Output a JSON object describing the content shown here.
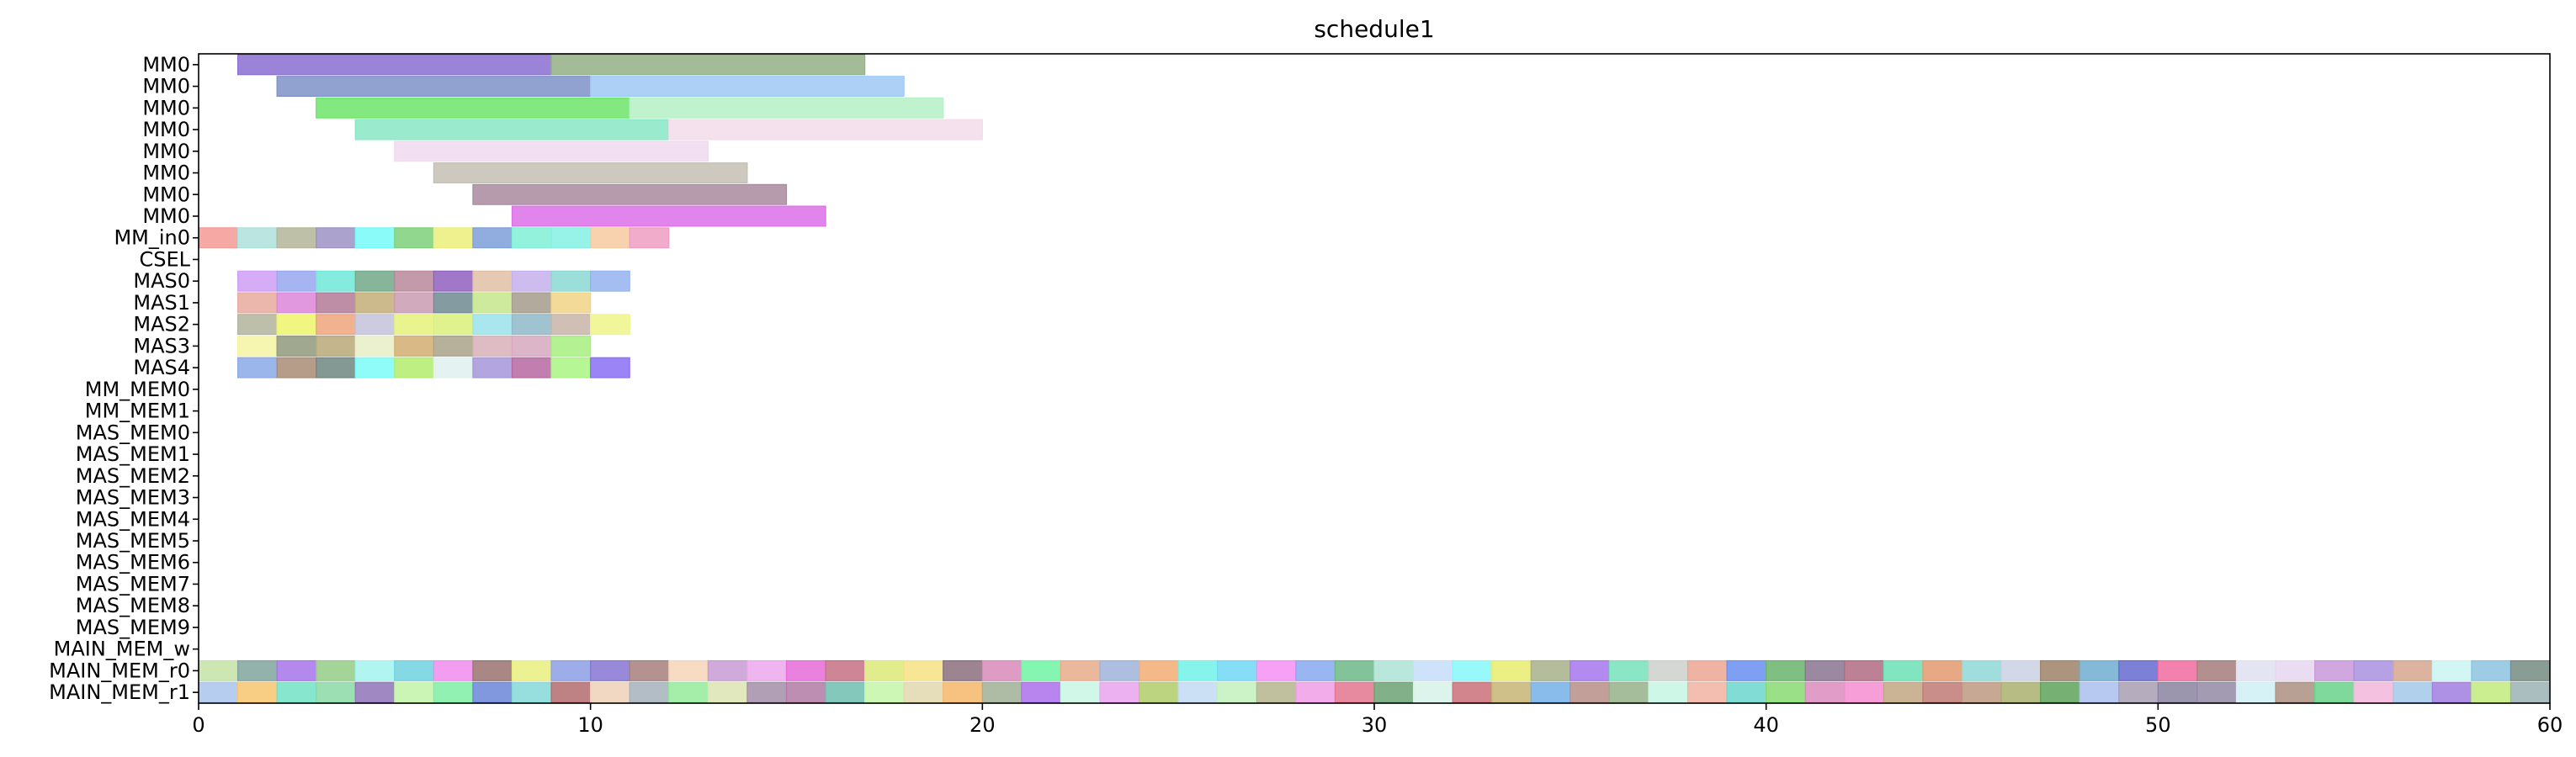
{
  "chart_data": {
    "type": "gantt",
    "title": "schedule1",
    "xlim": [
      0,
      60
    ],
    "x_ticks": [
      0,
      10,
      20,
      30,
      40,
      50,
      60
    ],
    "rows": [
      "MM0",
      "MM0",
      "MM0",
      "MM0",
      "MM0",
      "MM0",
      "MM0",
      "MM0",
      "MM_in0",
      "CSEL",
      "MAS0",
      "MAS1",
      "MAS2",
      "MAS3",
      "MAS4",
      "MM_MEM0",
      "MM_MEM1",
      "MAS_MEM0",
      "MAS_MEM1",
      "MAS_MEM2",
      "MAS_MEM3",
      "MAS_MEM4",
      "MAS_MEM5",
      "MAS_MEM6",
      "MAS_MEM7",
      "MAS_MEM8",
      "MAS_MEM9",
      "MAIN_MEM_w",
      "MAIN_MEM_r0",
      "MAIN_MEM_r1"
    ],
    "bars": [
      {
        "row": 0,
        "start": 1,
        "end": 9,
        "color": "#8a6fd0"
      },
      {
        "row": 0,
        "start": 9,
        "end": 17,
        "color": "#93b085"
      },
      {
        "row": 1,
        "start": 2,
        "end": 10,
        "color": "#7e90c8"
      },
      {
        "row": 1,
        "start": 10,
        "end": 18,
        "color": "#9fc8f5"
      },
      {
        "row": 2,
        "start": 3,
        "end": 11,
        "color": "#6ee46a"
      },
      {
        "row": 2,
        "start": 11,
        "end": 19,
        "color": "#b6f0c6"
      },
      {
        "row": 3,
        "start": 4,
        "end": 12,
        "color": "#88e6c6"
      },
      {
        "row": 3,
        "start": 12,
        "end": 20,
        "color": "#f3dbea"
      },
      {
        "row": 4,
        "start": 5,
        "end": 13,
        "color": "#f0d9ee"
      },
      {
        "row": 5,
        "start": 6,
        "end": 14,
        "color": "#c5c0b3"
      },
      {
        "row": 6,
        "start": 7,
        "end": 15,
        "color": "#a8899e"
      },
      {
        "row": 7,
        "start": 8,
        "end": 16,
        "color": "#dc6ee8"
      },
      {
        "row": 8,
        "start": 0,
        "end": 1,
        "color": "#f59a94"
      },
      {
        "row": 8,
        "start": 1,
        "end": 2,
        "color": "#aee0dc"
      },
      {
        "row": 8,
        "start": 2,
        "end": 3,
        "color": "#b3b698"
      },
      {
        "row": 8,
        "start": 3,
        "end": 4,
        "color": "#9c93c4"
      },
      {
        "row": 8,
        "start": 4,
        "end": 5,
        "color": "#75faf8"
      },
      {
        "row": 8,
        "start": 5,
        "end": 6,
        "color": "#7fd07a"
      },
      {
        "row": 8,
        "start": 6,
        "end": 7,
        "color": "#ecef7a"
      },
      {
        "row": 8,
        "start": 7,
        "end": 8,
        "color": "#7e9fd9"
      },
      {
        "row": 8,
        "start": 8,
        "end": 9,
        "color": "#7ff0d6"
      },
      {
        "row": 8,
        "start": 9,
        "end": 10,
        "color": "#85f0e3"
      },
      {
        "row": 8,
        "start": 10,
        "end": 11,
        "color": "#f7c9a0"
      },
      {
        "row": 8,
        "start": 11,
        "end": 12,
        "color": "#ee9cc2"
      },
      {
        "row": 10,
        "start": 1,
        "end": 2,
        "color": "#cf9ef5"
      },
      {
        "row": 10,
        "start": 2,
        "end": 3,
        "color": "#97a7ee"
      },
      {
        "row": 10,
        "start": 3,
        "end": 4,
        "color": "#6fe8d8"
      },
      {
        "row": 10,
        "start": 4,
        "end": 5,
        "color": "#72a888"
      },
      {
        "row": 10,
        "start": 5,
        "end": 6,
        "color": "#b7889b"
      },
      {
        "row": 10,
        "start": 6,
        "end": 7,
        "color": "#8f5fc0"
      },
      {
        "row": 10,
        "start": 7,
        "end": 8,
        "color": "#e2c0a4"
      },
      {
        "row": 10,
        "start": 8,
        "end": 9,
        "color": "#c6b0ec"
      },
      {
        "row": 10,
        "start": 9,
        "end": 10,
        "color": "#8ad8d3"
      },
      {
        "row": 10,
        "start": 10,
        "end": 11,
        "color": "#95b3ee"
      },
      {
        "row": 11,
        "start": 1,
        "end": 2,
        "color": "#e8aa9e"
      },
      {
        "row": 11,
        "start": 2,
        "end": 3,
        "color": "#dd86d9"
      },
      {
        "row": 11,
        "start": 3,
        "end": 4,
        "color": "#b37a96"
      },
      {
        "row": 11,
        "start": 4,
        "end": 5,
        "color": "#c4ae78"
      },
      {
        "row": 11,
        "start": 5,
        "end": 6,
        "color": "#c99bb3"
      },
      {
        "row": 11,
        "start": 6,
        "end": 7,
        "color": "#6f8a92"
      },
      {
        "row": 11,
        "start": 7,
        "end": 8,
        "color": "#c6e68c"
      },
      {
        "row": 11,
        "start": 8,
        "end": 9,
        "color": "#a49c8c"
      },
      {
        "row": 11,
        "start": 9,
        "end": 10,
        "color": "#f2d486"
      },
      {
        "row": 12,
        "start": 1,
        "end": 2,
        "color": "#b1b49c"
      },
      {
        "row": 12,
        "start": 2,
        "end": 3,
        "color": "#eef56b"
      },
      {
        "row": 12,
        "start": 3,
        "end": 4,
        "color": "#eea47c"
      },
      {
        "row": 12,
        "start": 4,
        "end": 5,
        "color": "#c4c2da"
      },
      {
        "row": 12,
        "start": 5,
        "end": 6,
        "color": "#e6f27a"
      },
      {
        "row": 12,
        "start": 6,
        "end": 7,
        "color": "#dbf07a"
      },
      {
        "row": 12,
        "start": 7,
        "end": 8,
        "color": "#9ae2ea"
      },
      {
        "row": 12,
        "start": 8,
        "end": 9,
        "color": "#8fb8c8"
      },
      {
        "row": 12,
        "start": 9,
        "end": 10,
        "color": "#c8b4a8"
      },
      {
        "row": 12,
        "start": 10,
        "end": 11,
        "color": "#f0f58a"
      },
      {
        "row": 13,
        "start": 1,
        "end": 2,
        "color": "#f6f4a2"
      },
      {
        "row": 13,
        "start": 2,
        "end": 3,
        "color": "#8f9a7c"
      },
      {
        "row": 13,
        "start": 3,
        "end": 4,
        "color": "#b8a878"
      },
      {
        "row": 13,
        "start": 4,
        "end": 5,
        "color": "#e8eec6"
      },
      {
        "row": 13,
        "start": 5,
        "end": 6,
        "color": "#d2ae72"
      },
      {
        "row": 13,
        "start": 6,
        "end": 7,
        "color": "#a9a388"
      },
      {
        "row": 13,
        "start": 7,
        "end": 8,
        "color": "#d8b0b8"
      },
      {
        "row": 13,
        "start": 8,
        "end": 9,
        "color": "#d7a8c0"
      },
      {
        "row": 13,
        "start": 9,
        "end": 10,
        "color": "#a6ef80"
      },
      {
        "row": 14,
        "start": 1,
        "end": 2,
        "color": "#8aa9e6"
      },
      {
        "row": 14,
        "start": 2,
        "end": 3,
        "color": "#a98c74"
      },
      {
        "row": 14,
        "start": 3,
        "end": 4,
        "color": "#6f8780"
      },
      {
        "row": 14,
        "start": 4,
        "end": 5,
        "color": "#7bfbf8"
      },
      {
        "row": 14,
        "start": 5,
        "end": 6,
        "color": "#b3ec6c"
      },
      {
        "row": 14,
        "start": 6,
        "end": 7,
        "color": "#dff0ee"
      },
      {
        "row": 14,
        "start": 7,
        "end": 8,
        "color": "#a595db"
      },
      {
        "row": 14,
        "start": 8,
        "end": 9,
        "color": "#b867a2"
      },
      {
        "row": 14,
        "start": 9,
        "end": 10,
        "color": "#a9f581"
      },
      {
        "row": 14,
        "start": 10,
        "end": 11,
        "color": "#8a6ff4"
      }
    ],
    "strip_colors_r0": [
      "#c4e2a4",
      "#7fa59c",
      "#a774eb",
      "#94cc86",
      "#a3f3ed",
      "#6fd2e1",
      "#f08ced",
      "#9a7270",
      "#e9ee7e",
      "#8c9fe5",
      "#8775d2",
      "#a77f7d",
      "#f6d5b8",
      "#c79bd4",
      "#eca8eb",
      "#e76bd9",
      "#c57184",
      "#dcea79",
      "#f5e282",
      "#8b6f7c",
      "#d88bbb",
      "#6ff5a3",
      "#e9ac8a",
      "#9fb3d8",
      "#f3ac74",
      "#72f2e9",
      "#70d8f5",
      "#f490f5",
      "#87a8f0",
      "#6cb887",
      "#ade3d6",
      "#c5defa",
      "#85f8f9",
      "#e7ec6f",
      "#a7b08a",
      "#a675ed",
      "#75e2bb",
      "#cbd1ca",
      "#eca693",
      "#698ff0",
      "#6ab46c",
      "#8a7391",
      "#b26b82",
      "#6be0b5",
      "#e29a6f",
      "#8fd8d7",
      "#cad1e4",
      "#9d8369",
      "#6faed0",
      "#656acf",
      "#f06b9f",
      "#a57d7b",
      "#dfe0f1",
      "#e8d7ef",
      "#c998db",
      "#a990e1",
      "#d5a68d",
      "#c9f4f1",
      "#8cc3df",
      "#768c82"
    ],
    "strip_colors_r1": [
      "#a9c4ec",
      "#f7c56f",
      "#71e3c5",
      "#8ad9a5",
      "#8f74b7",
      "#c2f3a7",
      "#7deea5",
      "#6b86d8",
      "#85d9d8",
      "#b46c6f",
      "#efd1b9",
      "#a5b1bb",
      "#94eb9b",
      "#dde4b2",
      "#a28ea8",
      "#b27aa5",
      "#6fbeb0",
      "#c3f6a8",
      "#e2d8ae",
      "#f6b76a",
      "#a1b095",
      "#ab70ec",
      "#c8f6e3",
      "#e9a3ef",
      "#b0cc6a",
      "#c2d9f3",
      "#c2f1bd",
      "#b6b58d",
      "#ef9de5",
      "#e3758f",
      "#6ca273",
      "#d7f2ea",
      "#cb7079",
      "#c7b474",
      "#75b0e8",
      "#b88e87",
      "#95b28a",
      "#c6f6e3",
      "#f1b3a2",
      "#6ad6cd",
      "#87da72",
      "#dc8bbe",
      "#f68dd2",
      "#c2a784",
      "#bf7a74",
      "#bd9981",
      "#aab06f",
      "#5fa25a",
      "#aac0ed",
      "#a89fb3",
      "#8983a0",
      "#938aa5",
      "#d0f0f6",
      "#ab9081",
      "#68d18b",
      "#f2b6db",
      "#a3c8e9",
      "#a07edf",
      "#c2ec7d",
      "#9cb3b4"
    ]
  }
}
